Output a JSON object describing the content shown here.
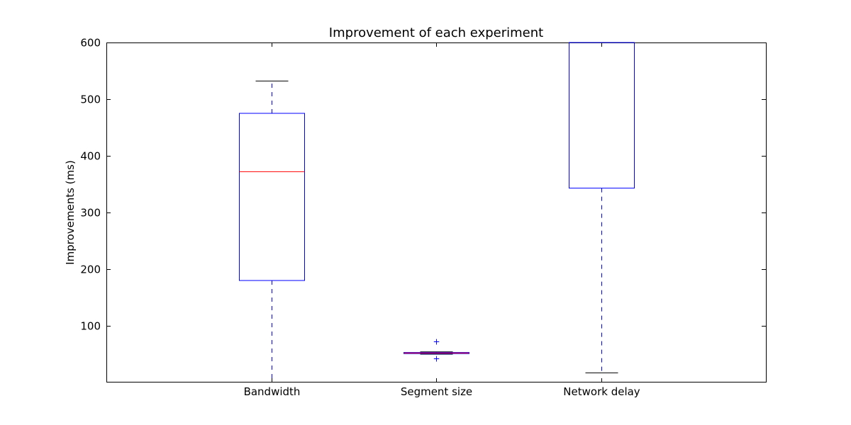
{
  "chart_data": {
    "type": "box",
    "title": "Improvement of each experiment",
    "xlabel": "",
    "ylabel": "Improvements (ms)",
    "ylim": [
      0,
      600
    ],
    "yticks": [
      100,
      200,
      300,
      400,
      500,
      600
    ],
    "categories": [
      "Bandwidth",
      "Segment size",
      "Network delay"
    ],
    "boxes": [
      {
        "whisker_low": 0,
        "q1": 180,
        "median": 372,
        "q3": 475,
        "whisker_high": 532,
        "outliers": []
      },
      {
        "whisker_low": 50,
        "q1": 51,
        "median": 52,
        "q3": 53,
        "whisker_high": 54,
        "outliers": [
          72,
          42
        ]
      },
      {
        "whisker_low": 17,
        "q1": 343,
        "median": null,
        "q3": 600,
        "whisker_high": 600,
        "outliers": []
      }
    ],
    "grid": false,
    "colors": {
      "box": "#0000ff",
      "median": "#ff0000",
      "whisker": "#0000ff",
      "cap": "#000000"
    }
  }
}
